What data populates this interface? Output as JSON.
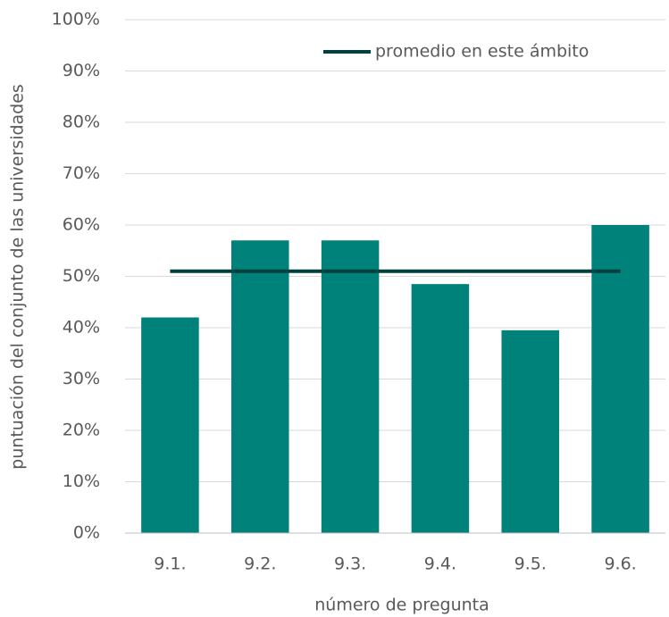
{
  "chart_data": {
    "type": "bar",
    "x_label": "número de pregunta",
    "y_label": "puntuación del conjunto de las universidades",
    "categories": [
      "9.1.",
      "9.2.",
      "9.3.",
      "9.4.",
      "9.5.",
      "9.6."
    ],
    "series": [
      {
        "type": "bar",
        "color": "#00827a",
        "values": [
          42,
          57,
          57,
          48.5,
          39.5,
          60
        ]
      },
      {
        "type": "line",
        "name": "promedio en este ámbito",
        "color": "#00413f",
        "values": [
          51,
          51,
          51,
          51,
          51,
          51
        ]
      }
    ],
    "ylim": [
      0,
      100
    ],
    "yticks": [
      {
        "value": 0,
        "label": "0%"
      },
      {
        "value": 10,
        "label": "10%"
      },
      {
        "value": 20,
        "label": "20%"
      },
      {
        "value": 30,
        "label": "30%"
      },
      {
        "value": 40,
        "label": "40%"
      },
      {
        "value": 50,
        "label": "50%"
      },
      {
        "value": 60,
        "label": "60%"
      },
      {
        "value": 70,
        "label": "70%"
      },
      {
        "value": 80,
        "label": "80%"
      },
      {
        "value": 90,
        "label": "90%"
      },
      {
        "value": 100,
        "label": "100%"
      }
    ],
    "grid": true,
    "legend": "top-right"
  }
}
